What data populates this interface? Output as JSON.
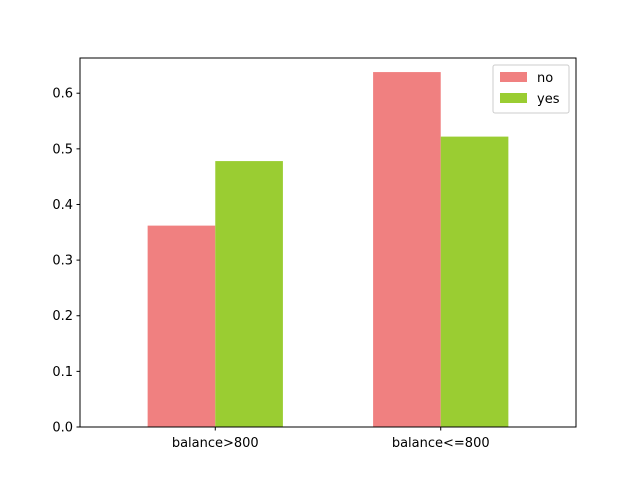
{
  "chart_data": {
    "type": "bar",
    "categories": [
      "balance>800",
      "balance<=800"
    ],
    "series": [
      {
        "name": "no",
        "values": [
          0.362,
          0.638
        ]
      },
      {
        "name": "yes",
        "values": [
          0.478,
          0.522
        ]
      }
    ],
    "title": "",
    "xlabel": "",
    "ylabel": "",
    "ylim": [
      0,
      0.6633
    ],
    "yticks": [
      0.0,
      0.1,
      0.2,
      0.3,
      0.4,
      0.5,
      0.6
    ],
    "ytick_labels": [
      "0.0",
      "0.1",
      "0.2",
      "0.3",
      "0.4",
      "0.5",
      "0.6"
    ],
    "grid": false,
    "legend": {
      "position": "top-right",
      "entries": [
        "no",
        "yes"
      ]
    },
    "colors": {
      "no": "#f08080",
      "yes": "#9acd32"
    }
  }
}
